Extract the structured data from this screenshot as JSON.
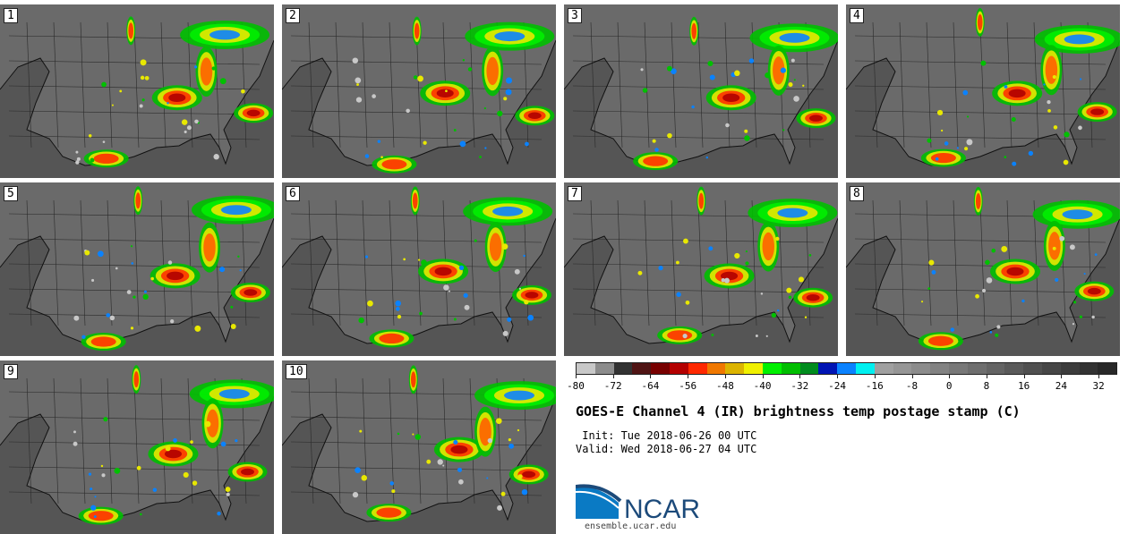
{
  "panels": [
    {
      "label": "1"
    },
    {
      "label": "2"
    },
    {
      "label": "3"
    },
    {
      "label": "4"
    },
    {
      "label": "5"
    },
    {
      "label": "6"
    },
    {
      "label": "7"
    },
    {
      "label": "8"
    },
    {
      "label": "9"
    },
    {
      "label": "10"
    }
  ],
  "colorbar": {
    "colors": [
      "#c8c8c8",
      "#8c8c8c",
      "#323232",
      "#501414",
      "#780000",
      "#b40000",
      "#ff2800",
      "#f07800",
      "#dcb400",
      "#f0f000",
      "#00f000",
      "#00be00",
      "#008c1e",
      "#0014b4",
      "#0a82ff",
      "#00f0f0",
      "#a0a0a0",
      "#969696",
      "#8c8c8c",
      "#828282",
      "#787878",
      "#6e6e6e",
      "#646464",
      "#5a5a5a",
      "#505050",
      "#464646",
      "#3c3c3c",
      "#323232",
      "#282828"
    ],
    "tick_labels": [
      "-80",
      "-72",
      "-64",
      "-56",
      "-48",
      "-40",
      "-32",
      "-24",
      "-16",
      "-8",
      "0",
      "8",
      "16",
      "24",
      "32"
    ],
    "tick_values": [
      -80,
      -72,
      -64,
      -56,
      -48,
      -40,
      -32,
      -24,
      -16,
      -8,
      0,
      8,
      16,
      24,
      32
    ],
    "range": [
      -80,
      36
    ]
  },
  "title": "GOES-E Channel 4 (IR) brightness temp postage stamp (C)",
  "init_line": " Init: Tue 2018-06-26 00 UTC",
  "valid_line": "Valid: Wed 2018-06-27 04 UTC",
  "logo": {
    "name": "NCAR",
    "url": "ensemble.ucar.edu"
  }
}
